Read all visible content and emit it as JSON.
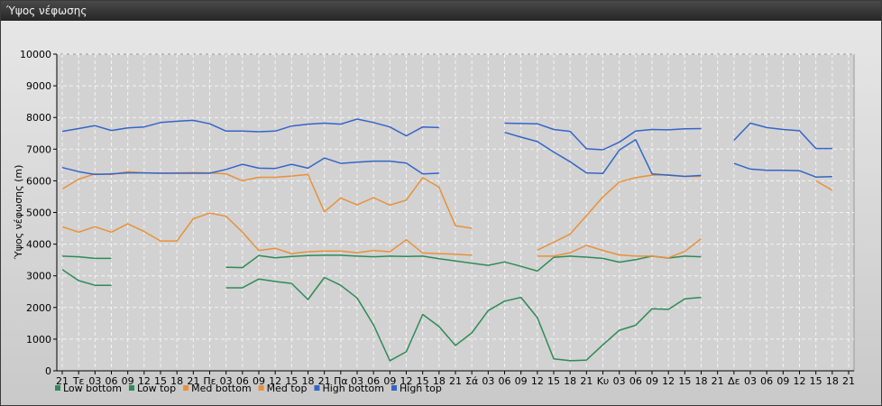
{
  "window": {
    "title": "Ύψος νέφωσης"
  },
  "chart_data": {
    "type": "line",
    "title": "",
    "xlabel": "",
    "ylabel": "Ύψος νέφωσης (m)",
    "ylim": [
      0,
      10000
    ],
    "yticks": [
      0,
      1000,
      2000,
      3000,
      4000,
      5000,
      6000,
      7000,
      8000,
      9000,
      10000
    ],
    "grid": true,
    "legend": "bottom-left",
    "x": [
      "21",
      "Τε",
      "03",
      "06",
      "09",
      "12",
      "15",
      "18",
      "21",
      "Πε",
      "03",
      "06",
      "09",
      "12",
      "15",
      "18",
      "21",
      "Πα",
      "03",
      "06",
      "09",
      "12",
      "15",
      "18",
      "21",
      "Σά",
      "03",
      "06",
      "09",
      "12",
      "15",
      "18",
      "21",
      "Κυ",
      "03",
      "06",
      "09",
      "12",
      "15",
      "18",
      "21",
      "Δε",
      "03",
      "06",
      "09",
      "12",
      "15",
      "18",
      "21"
    ],
    "series": [
      {
        "name": "Low bottom",
        "color": "#2e8b57",
        "values": [
          3620,
          3600,
          3550,
          3550,
          null,
          null,
          null,
          null,
          null,
          null,
          3270,
          3260,
          3640,
          3570,
          3610,
          3640,
          3650,
          3650,
          3620,
          3600,
          3620,
          3610,
          3620,
          3540,
          3470,
          3400,
          3330,
          3440,
          3300,
          3150,
          3580,
          3620,
          3590,
          3550,
          3430,
          3510,
          3620,
          3560,
          3620,
          3600,
          null,
          null,
          null,
          null,
          null,
          null,
          null,
          null,
          null
        ]
      },
      {
        "name": "Low top",
        "color": "#2e8b57",
        "values": [
          3200,
          2850,
          2700,
          2700,
          null,
          null,
          null,
          null,
          null,
          null,
          2620,
          2620,
          2900,
          2820,
          2760,
          2250,
          2950,
          2700,
          2300,
          1450,
          320,
          600,
          1780,
          1400,
          800,
          1200,
          1900,
          2200,
          2320,
          1680,
          380,
          320,
          340,
          820,
          1280,
          1440,
          1960,
          1940,
          2270,
          2320,
          null,
          null,
          null,
          null,
          null,
          null,
          null,
          null,
          null
        ]
      },
      {
        "name": "Med bottom",
        "color": "#e8913a",
        "values": [
          4550,
          4380,
          4550,
          4380,
          4640,
          4400,
          4100,
          4100,
          4800,
          4980,
          4880,
          4380,
          3800,
          3870,
          3700,
          3760,
          3780,
          3780,
          3730,
          3800,
          3760,
          4140,
          3720,
          3700,
          3680,
          3650,
          null,
          null,
          null,
          3620,
          3620,
          3730,
          3960,
          3800,
          3660,
          3620,
          3620,
          3570,
          3770,
          4170,
          null,
          null,
          null,
          null,
          null,
          null,
          null,
          null,
          null
        ]
      },
      {
        "name": "Med top",
        "color": "#e8913a",
        "values": [
          5740,
          6050,
          6220,
          6200,
          6290,
          6250,
          6240,
          6250,
          6260,
          6250,
          6220,
          6000,
          6110,
          6110,
          6150,
          6200,
          5020,
          5460,
          5240,
          5470,
          5230,
          5390,
          6100,
          5800,
          4580,
          4500,
          null,
          null,
          null,
          3810,
          4060,
          4320,
          4900,
          5490,
          5960,
          6100,
          6180,
          6190,
          6140,
          6140,
          null,
          null,
          null,
          null,
          null,
          null,
          6000,
          5700,
          null
        ]
      },
      {
        "name": "High bottom",
        "color": "#3465c8",
        "values": [
          6420,
          6290,
          6200,
          6220,
          6250,
          6250,
          6240,
          6240,
          6240,
          6240,
          6360,
          6520,
          6400,
          6390,
          6520,
          6400,
          6720,
          6550,
          6590,
          6620,
          6620,
          6560,
          6220,
          6240,
          null,
          null,
          null,
          7530,
          7380,
          7240,
          6910,
          6600,
          6250,
          6230,
          6970,
          7300,
          6220,
          6180,
          6140,
          6170,
          null,
          6550,
          6370,
          6330,
          6330,
          6320,
          6120,
          6130,
          null
        ]
      },
      {
        "name": "High top",
        "color": "#3465c8",
        "values": [
          7560,
          7650,
          7740,
          7590,
          7670,
          7700,
          7840,
          7880,
          7910,
          7800,
          7570,
          7570,
          7550,
          7570,
          7730,
          7790,
          7820,
          7790,
          7950,
          7840,
          7700,
          7420,
          7700,
          7680,
          null,
          null,
          null,
          7820,
          7810,
          7800,
          7620,
          7560,
          7010,
          6980,
          7220,
          7570,
          7620,
          7610,
          7640,
          7650,
          null,
          7280,
          7820,
          7680,
          7620,
          7580,
          7020,
          7020,
          null
        ]
      }
    ]
  }
}
